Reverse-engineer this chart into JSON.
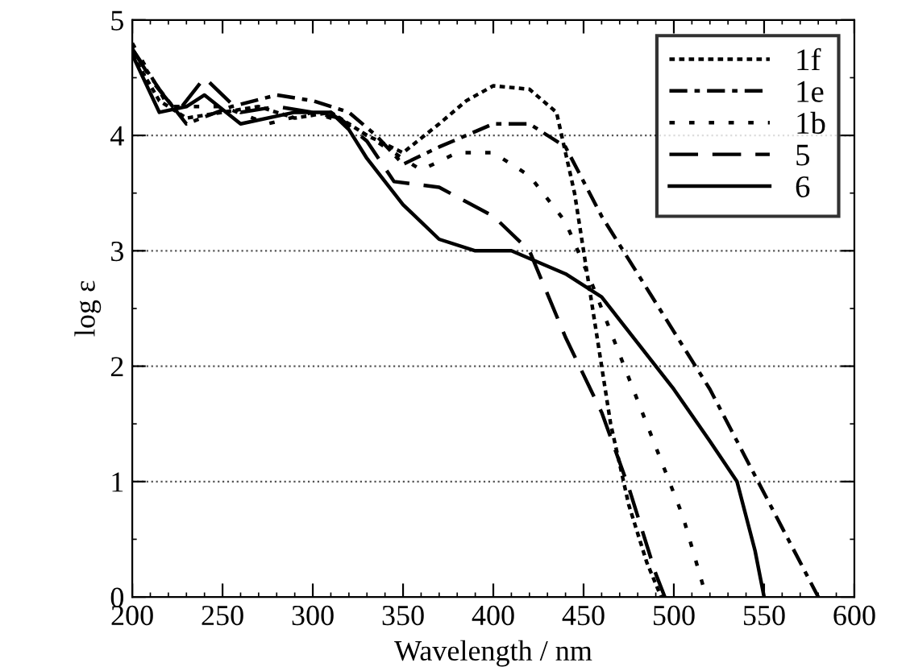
{
  "chart_data": {
    "type": "line",
    "xlabel": "Wavelength / nm",
    "ylabel": "log ε",
    "xlim": [
      200,
      600
    ],
    "ylim": [
      0,
      5
    ],
    "xticks": [
      200,
      250,
      300,
      350,
      400,
      450,
      500,
      550,
      600
    ],
    "yticks": [
      0,
      1,
      2,
      3,
      4,
      5
    ],
    "grid": "y",
    "legend": "top right",
    "marker": "none",
    "series": [
      {
        "name": "1f",
        "color": "#000000",
        "line_style": "dotted",
        "x": [
          200,
          215,
          230,
          250,
          270,
          290,
          310,
          330,
          350,
          370,
          385,
          400,
          420,
          435,
          445,
          455,
          465,
          475,
          485,
          493
        ],
        "values": [
          4.7,
          4.3,
          4.15,
          4.2,
          4.25,
          4.15,
          4.2,
          4.0,
          3.85,
          4.1,
          4.3,
          4.43,
          4.4,
          4.2,
          3.5,
          2.5,
          1.5,
          0.8,
          0.3,
          0
        ]
      },
      {
        "name": "1e",
        "color": "#000000",
        "line_style": "dashdot",
        "x": [
          200,
          215,
          230,
          255,
          280,
          300,
          320,
          335,
          350,
          370,
          400,
          420,
          440,
          460,
          480,
          500,
          520,
          540,
          560,
          580
        ],
        "values": [
          4.75,
          4.4,
          4.1,
          4.25,
          4.35,
          4.3,
          4.2,
          4.0,
          3.75,
          3.9,
          4.1,
          4.1,
          3.9,
          3.3,
          2.8,
          2.3,
          1.8,
          1.2,
          0.6,
          0
        ]
      },
      {
        "name": "1b",
        "color": "#000000",
        "line_style": "sparse",
        "x": [
          200,
          220,
          250,
          275,
          300,
          320,
          340,
          360,
          380,
          400,
          420,
          440,
          455,
          470,
          490,
          505,
          518
        ],
        "values": [
          4.8,
          4.25,
          4.25,
          4.1,
          4.2,
          4.1,
          3.9,
          3.7,
          3.85,
          3.85,
          3.65,
          3.25,
          2.7,
          2.1,
          1.3,
          0.7,
          0
        ]
      },
      {
        "name": "5",
        "color": "#000000",
        "line_style": "dashed",
        "x": [
          200,
          212,
          225,
          240,
          260,
          280,
          300,
          315,
          330,
          345,
          370,
          400,
          420,
          440,
          460,
          475,
          490,
          495
        ],
        "values": [
          4.75,
          4.45,
          4.2,
          4.5,
          4.2,
          4.25,
          4.2,
          4.15,
          3.95,
          3.6,
          3.55,
          3.3,
          3.0,
          2.25,
          1.6,
          0.95,
          0.2,
          0
        ]
      },
      {
        "name": "6",
        "color": "#000000",
        "line_style": "solid",
        "x": [
          200,
          215,
          230,
          240,
          260,
          290,
          310,
          320,
          330,
          350,
          370,
          390,
          410,
          440,
          460,
          480,
          500,
          520,
          535,
          545,
          550
        ],
        "values": [
          4.7,
          4.2,
          4.25,
          4.35,
          4.1,
          4.2,
          4.2,
          4.05,
          3.8,
          3.4,
          3.1,
          3.0,
          3.0,
          2.8,
          2.6,
          2.2,
          1.8,
          1.35,
          1.0,
          0.4,
          0
        ]
      }
    ]
  }
}
